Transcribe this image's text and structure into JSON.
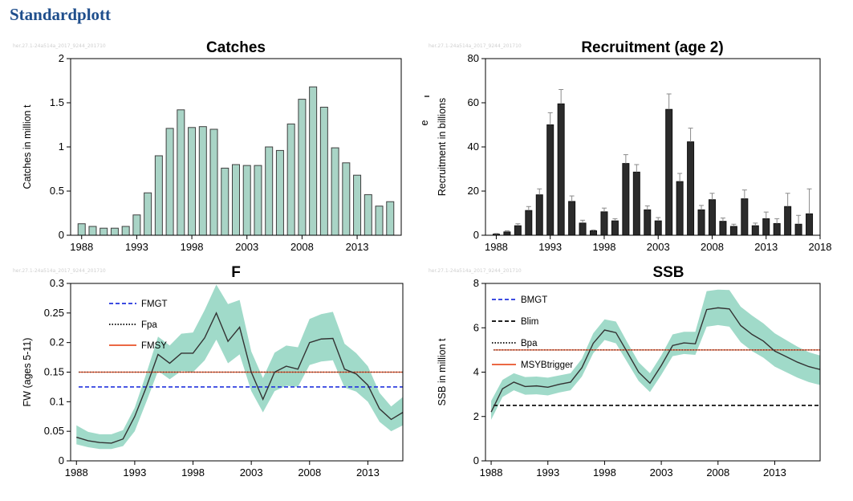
{
  "page": {
    "title": "Standardplott"
  },
  "watermark": "her.27.1-24a514a_2017_9244_201710",
  "colors": {
    "catch_bar": "#A9D4C6",
    "band": "#8FD3C0",
    "line": "#333333",
    "rec_bar": "#2B2B2B",
    "blue": "#2233DD",
    "red": "#E8532A",
    "brown": "#7A3B2A"
  },
  "chart_data": [
    {
      "id": "catches",
      "type": "bar",
      "title": "Catches",
      "ylabel": "Catches in million t",
      "xlabel": "",
      "ylim": [
        0,
        2
      ],
      "yticks": [
        0,
        0.5,
        1,
        1.5,
        2
      ],
      "ytick_labels": [
        "0",
        "0.5",
        "1",
        "1.5",
        "2"
      ],
      "xlim": [
        1987,
        2017
      ],
      "xticks": [
        1988,
        1993,
        1998,
        2003,
        2008,
        2013
      ],
      "x": [
        1988,
        1989,
        1990,
        1991,
        1992,
        1993,
        1994,
        1995,
        1996,
        1997,
        1998,
        1999,
        2000,
        2001,
        2002,
        2003,
        2004,
        2005,
        2006,
        2007,
        2008,
        2009,
        2010,
        2011,
        2012,
        2013,
        2014,
        2015,
        2016
      ],
      "values": [
        0.13,
        0.1,
        0.08,
        0.08,
        0.1,
        0.23,
        0.48,
        0.9,
        1.21,
        1.42,
        1.22,
        1.23,
        1.2,
        0.76,
        0.8,
        0.79,
        0.79,
        1.0,
        0.96,
        1.26,
        1.54,
        1.68,
        1.45,
        0.99,
        0.82,
        0.68,
        0.46,
        0.33,
        0.38
      ]
    },
    {
      "id": "recruitment",
      "type": "bar",
      "title": "Recruitment (age 2)",
      "ylabel": "Recruitment in billions",
      "left_marker": "e",
      "ylim": [
        0,
        80
      ],
      "yticks": [
        0,
        20,
        40,
        60,
        80
      ],
      "ytick_labels": [
        "0",
        "20",
        "40",
        "60",
        "80"
      ],
      "xlim": [
        1987,
        2018
      ],
      "xticks": [
        1988,
        1993,
        1998,
        2003,
        2008,
        2013,
        2018
      ],
      "x": [
        1988,
        1989,
        1990,
        1991,
        1992,
        1993,
        1994,
        1995,
        1996,
        1997,
        1998,
        1999,
        2000,
        2001,
        2002,
        2003,
        2004,
        2005,
        2006,
        2007,
        2008,
        2009,
        2010,
        2011,
        2012,
        2013,
        2014,
        2015,
        2016,
        2017
      ],
      "values": [
        0.5,
        1.5,
        4.3,
        11.2,
        18.3,
        50,
        59.5,
        15.3,
        5.5,
        2,
        10.6,
        6.5,
        32.5,
        28.6,
        11.5,
        6.5,
        57,
        24.3,
        42.3,
        11.5,
        16.1,
        6.3,
        4,
        16.5,
        4.3,
        7.5,
        5.3,
        13,
        5,
        9.7
      ],
      "upper": [
        0.8,
        2.0,
        5.2,
        13.0,
        21.0,
        55.5,
        66.0,
        17.8,
        6.8,
        2.4,
        12.3,
        7.5,
        36.5,
        32.0,
        13.3,
        8.0,
        64.0,
        28.0,
        48.5,
        13.5,
        19.0,
        7.8,
        5.0,
        20.5,
        5.5,
        10.5,
        7.5,
        19.0,
        9.0,
        21.0
      ]
    },
    {
      "id": "f",
      "type": "line",
      "title": "F",
      "ylabel": "FW (ages 5-11)",
      "ylim": [
        0,
        0.3
      ],
      "yticks": [
        0,
        0.05,
        0.1,
        0.15,
        0.2,
        0.25,
        0.3
      ],
      "ytick_labels": [
        "0",
        "0.05",
        "0.1",
        "0.15",
        "0.2",
        "0.25",
        "0.3"
      ],
      "xlim": [
        1987.5,
        2016
      ],
      "xticks": [
        1988,
        1993,
        1998,
        2003,
        2008,
        2013
      ],
      "x": [
        1988,
        1989,
        1990,
        1991,
        1992,
        1993,
        1994,
        1995,
        1996,
        1997,
        1998,
        1999,
        2000,
        2001,
        2002,
        2003,
        2004,
        2005,
        2006,
        2007,
        2008,
        2009,
        2010,
        2011,
        2012,
        2013,
        2014,
        2015,
        2016
      ],
      "y": [
        0.04,
        0.034,
        0.031,
        0.03,
        0.037,
        0.075,
        0.125,
        0.18,
        0.165,
        0.182,
        0.182,
        0.208,
        0.25,
        0.202,
        0.226,
        0.15,
        0.104,
        0.15,
        0.16,
        0.155,
        0.2,
        0.206,
        0.207,
        0.155,
        0.147,
        0.128,
        0.088,
        0.07,
        0.082
      ],
      "upper": [
        0.06,
        0.049,
        0.045,
        0.045,
        0.052,
        0.09,
        0.148,
        0.21,
        0.195,
        0.215,
        0.217,
        0.255,
        0.298,
        0.265,
        0.272,
        0.185,
        0.14,
        0.183,
        0.195,
        0.192,
        0.24,
        0.248,
        0.252,
        0.198,
        0.182,
        0.16,
        0.115,
        0.092,
        0.108
      ],
      "lower": [
        0.028,
        0.023,
        0.02,
        0.02,
        0.025,
        0.05,
        0.1,
        0.152,
        0.138,
        0.152,
        0.15,
        0.17,
        0.205,
        0.165,
        0.18,
        0.118,
        0.082,
        0.118,
        0.127,
        0.125,
        0.162,
        0.168,
        0.17,
        0.124,
        0.117,
        0.1,
        0.066,
        0.05,
        0.06
      ],
      "legend": [
        {
          "label": "FMGT",
          "style": "dashed",
          "color": "blue"
        },
        {
          "label": "Fpa",
          "style": "dotted",
          "color": "black"
        },
        {
          "label": "FMSY",
          "style": "solid",
          "color": "red"
        }
      ],
      "reference_lines": [
        {
          "name": "FMGT",
          "value": 0.125,
          "style": "dashed",
          "color": "blue"
        },
        {
          "name": "FMSY",
          "value": 0.15,
          "style": "solid",
          "color": "red"
        },
        {
          "name": "Fpa",
          "value": 0.15,
          "style": "dotted",
          "color": "brown"
        }
      ]
    },
    {
      "id": "ssb",
      "type": "line",
      "title": "SSB",
      "ylabel": "SSB in million t",
      "ylim": [
        0,
        8
      ],
      "yticks": [
        0,
        2,
        4,
        6,
        8
      ],
      "ytick_labels": [
        "0",
        "2",
        "4",
        "6",
        "8"
      ],
      "xlim": [
        1987.5,
        2017
      ],
      "xticks": [
        1988,
        1993,
        1998,
        2003,
        2008,
        2013
      ],
      "x": [
        1988,
        1989,
        1990,
        1991,
        1992,
        1993,
        1994,
        1995,
        1996,
        1997,
        1998,
        1999,
        2000,
        2001,
        2002,
        2003,
        2004,
        2005,
        2006,
        2007,
        2008,
        2009,
        2010,
        2011,
        2012,
        2013,
        2014,
        2015,
        2016,
        2017
      ],
      "y": [
        2.2,
        3.25,
        3.55,
        3.35,
        3.38,
        3.32,
        3.45,
        3.55,
        4.2,
        5.3,
        5.9,
        5.78,
        4.9,
        4.0,
        3.5,
        4.3,
        5.2,
        5.32,
        5.28,
        6.82,
        6.9,
        6.85,
        6.1,
        5.7,
        5.4,
        4.95,
        4.7,
        4.45,
        4.25,
        4.12
      ],
      "upper": [
        2.7,
        3.65,
        3.95,
        3.78,
        3.8,
        3.75,
        3.85,
        3.95,
        4.6,
        5.75,
        6.38,
        6.28,
        5.35,
        4.45,
        3.95,
        4.75,
        5.7,
        5.82,
        5.82,
        7.65,
        7.72,
        7.7,
        6.95,
        6.55,
        6.2,
        5.75,
        5.45,
        5.15,
        4.9,
        4.75
      ],
      "lower": [
        1.85,
        2.88,
        3.18,
        2.98,
        3.0,
        2.95,
        3.08,
        3.18,
        3.8,
        4.85,
        5.45,
        5.3,
        4.45,
        3.6,
        3.1,
        3.88,
        4.72,
        4.82,
        4.78,
        6.05,
        6.12,
        6.05,
        5.35,
        4.95,
        4.65,
        4.25,
        4.0,
        3.75,
        3.55,
        3.42
      ],
      "legend": [
        {
          "label": "BMGT",
          "style": "dashed",
          "color": "blue"
        },
        {
          "label": "Blim",
          "style": "dashed",
          "color": "black"
        },
        {
          "label": "Bpa",
          "style": "dotted",
          "color": "black"
        },
        {
          "label": "MSYBtrigger",
          "style": "solid",
          "color": "red"
        }
      ],
      "reference_lines": [
        {
          "name": "Blim",
          "value": 2.5,
          "style": "dashed",
          "color": "black"
        },
        {
          "name": "MSYBtrigger",
          "value": 5.0,
          "style": "solid",
          "color": "red"
        },
        {
          "name": "Bpa",
          "value": 5.0,
          "style": "dotted",
          "color": "brown"
        }
      ]
    }
  ]
}
